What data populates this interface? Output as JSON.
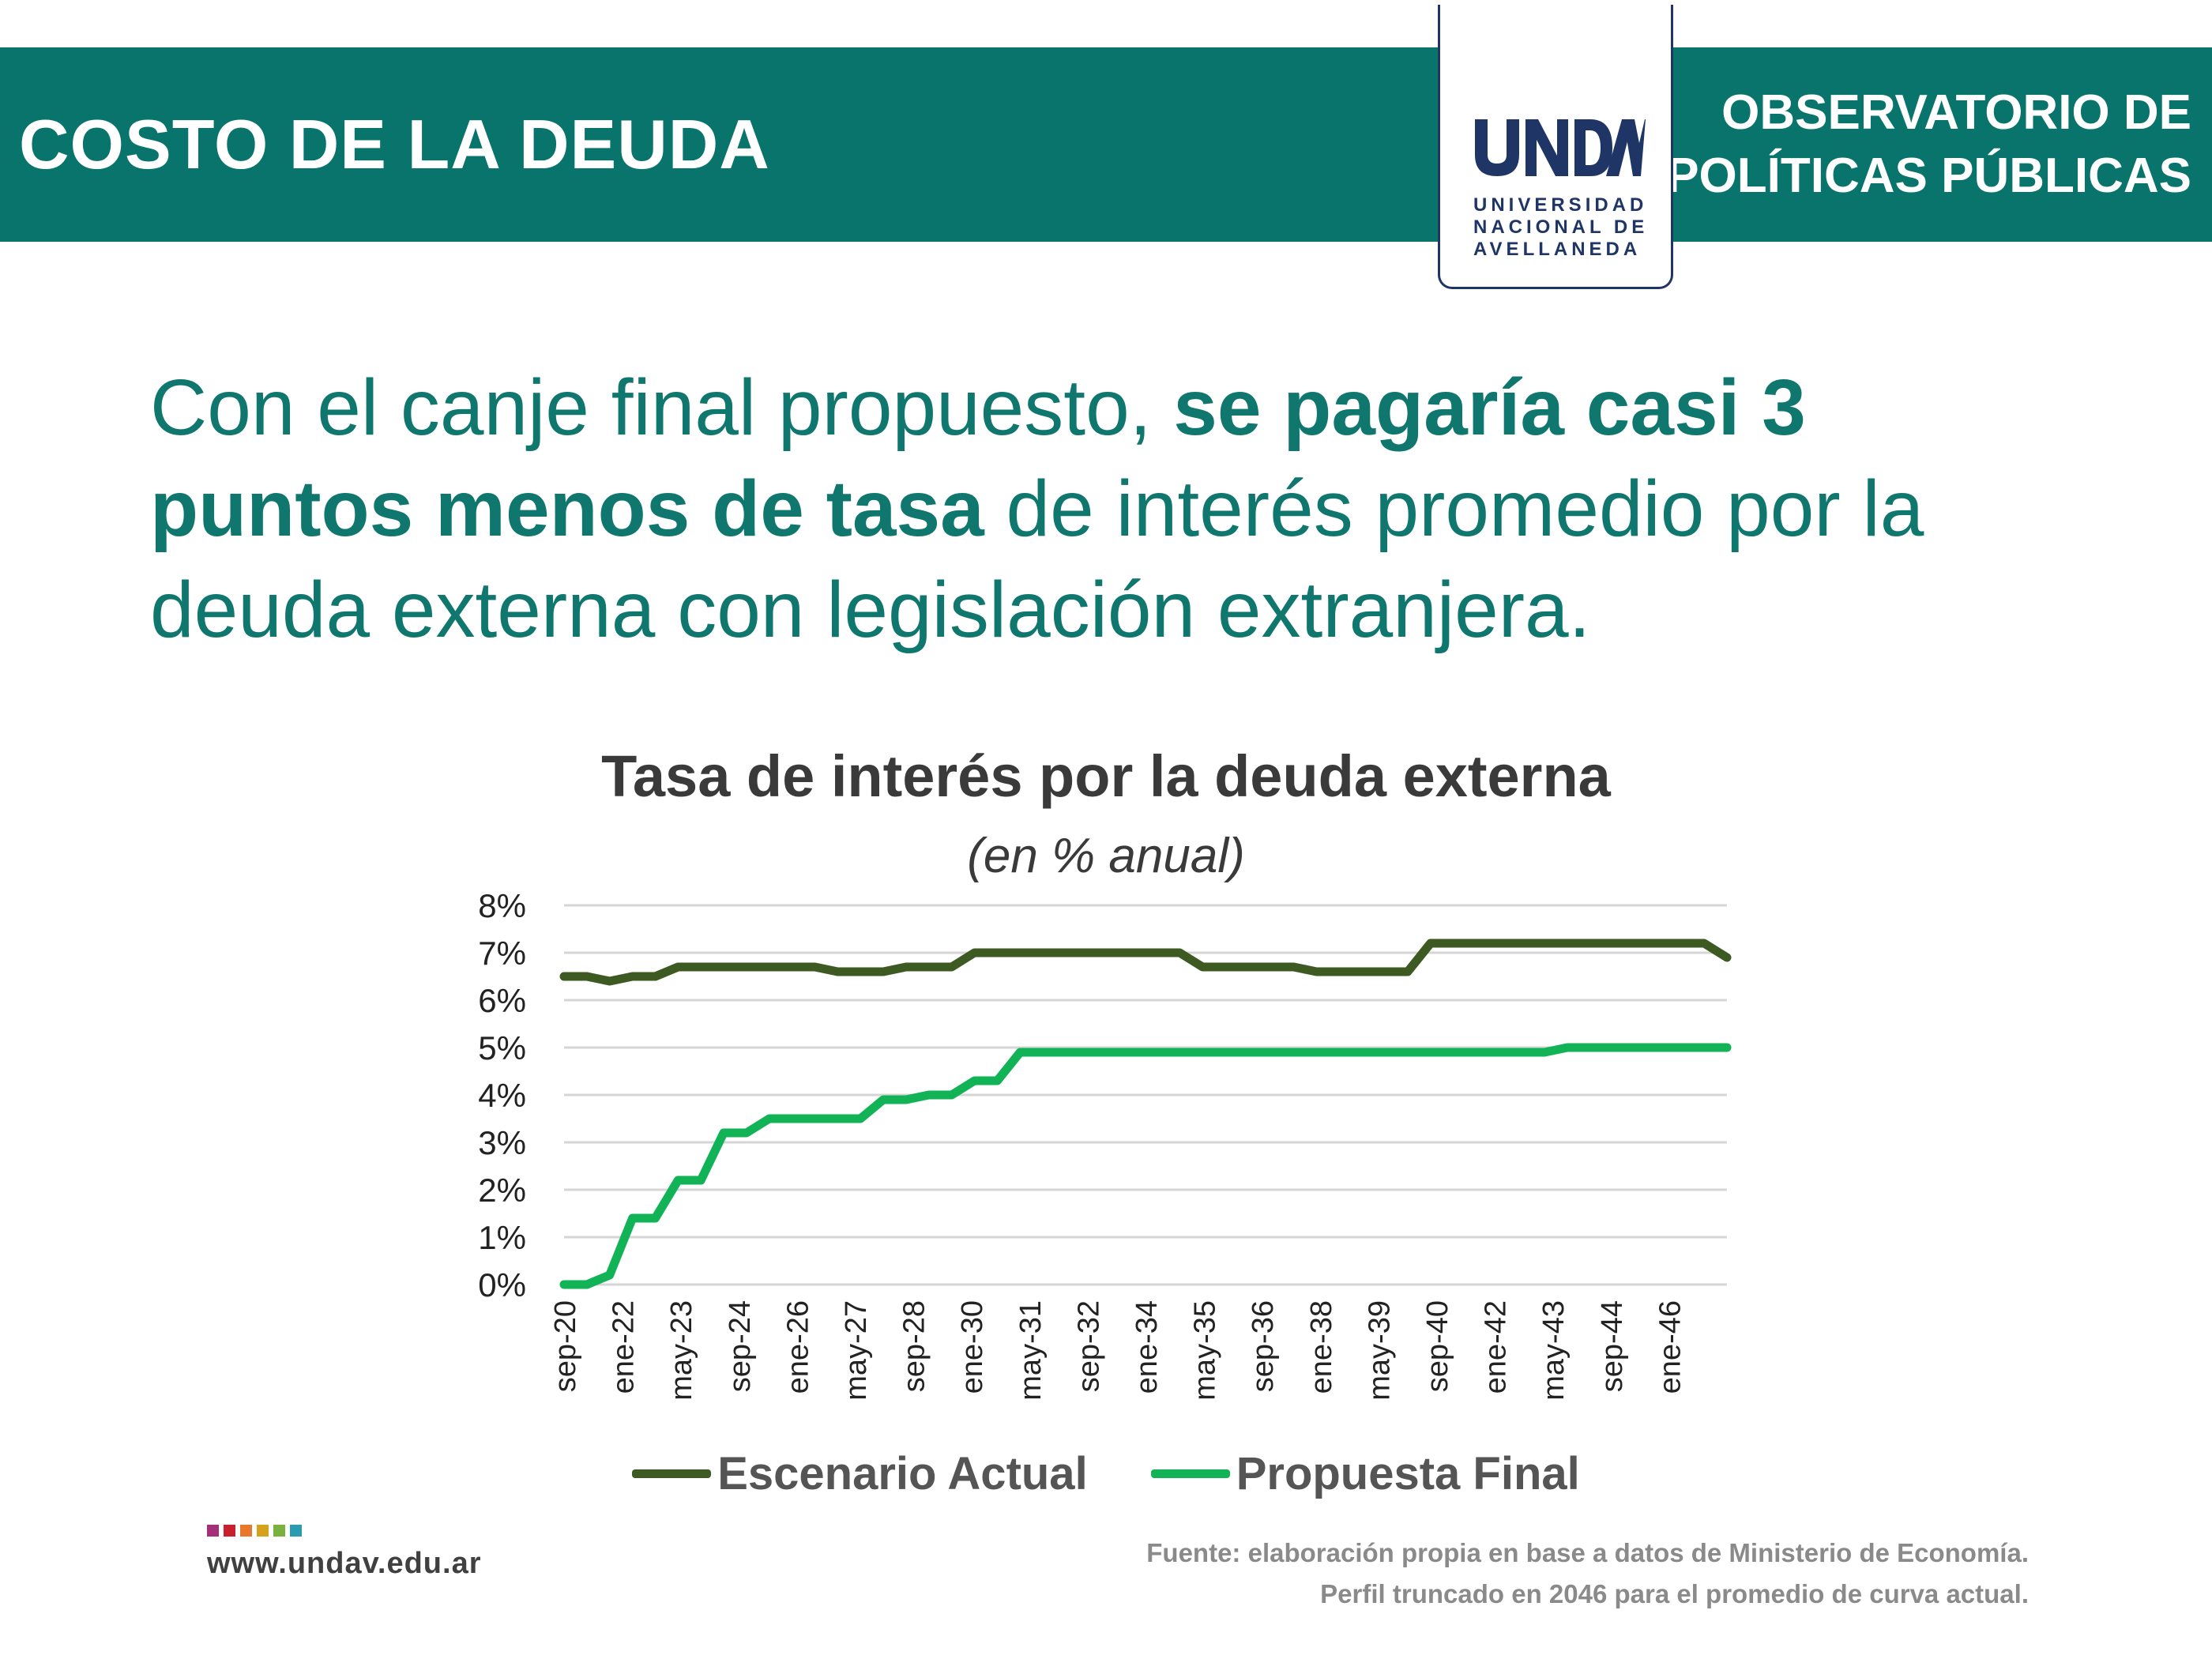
{
  "header": {
    "section_title": "COSTO DE LA DEUDA",
    "observatory_line1": "OBSERVATORIO DE",
    "observatory_line2": "POLÍTICAS PÚBLICAS",
    "logo_text": "UNDAV",
    "logo_sub_line1": "UNIVERSIDAD",
    "logo_sub_line2": "NACIONAL DE",
    "logo_sub_line3": "AVELLANEDA",
    "banner_color": "#08746c",
    "logo_color": "#1f3566"
  },
  "headline": {
    "part1": "Con el canje final propuesto, ",
    "bold": "se pagaría casi 3 puntos menos de tasa",
    "part2": " de interés promedio por la deuda externa con legislación extranjera."
  },
  "chart_data": {
    "type": "line",
    "title": "Tasa de interés por la deuda externa",
    "subtitle": "(en % anual)",
    "ylim": [
      0,
      8
    ],
    "yticks": [
      "0%",
      "1%",
      "2%",
      "3%",
      "4%",
      "5%",
      "6%",
      "7%",
      "8%"
    ],
    "grid": true,
    "legend_position": "bottom",
    "x_labels": [
      "sep-20",
      "ene-22",
      "may-23",
      "sep-24",
      "ene-26",
      "may-27",
      "sep-28",
      "ene-30",
      "may-31",
      "sep-32",
      "ene-34",
      "may-35",
      "sep-36",
      "ene-38",
      "may-39",
      "sep-40",
      "ene-42",
      "may-43",
      "sep-44",
      "ene-46"
    ],
    "series": [
      {
        "name": "Escenario Actual",
        "color": "#3c5a22",
        "values": [
          6.5,
          6.5,
          6.4,
          6.5,
          6.5,
          6.7,
          6.7,
          6.7,
          6.7,
          6.7,
          6.7,
          6.7,
          6.6,
          6.6,
          6.6,
          6.7,
          6.7,
          6.7,
          7.0,
          7.0,
          7.0,
          7.0,
          7.0,
          7.0,
          7.0,
          7.0,
          7.0,
          7.0,
          6.7,
          6.7,
          6.7,
          6.7,
          6.7,
          6.6,
          6.6,
          6.6,
          6.6,
          6.6,
          7.2,
          7.2,
          7.2,
          7.2,
          7.2,
          7.2,
          7.2,
          7.2,
          7.2,
          7.2,
          7.2,
          7.2,
          7.2,
          6.9
        ]
      },
      {
        "name": "Propuesta Final",
        "color": "#12b356",
        "values": [
          0.0,
          0.0,
          0.2,
          1.4,
          1.4,
          2.2,
          2.2,
          3.2,
          3.2,
          3.5,
          3.5,
          3.5,
          3.5,
          3.5,
          3.9,
          3.9,
          4.0,
          4.0,
          4.3,
          4.3,
          4.9,
          4.9,
          4.9,
          4.9,
          4.9,
          4.9,
          4.9,
          4.9,
          4.9,
          4.9,
          4.9,
          4.9,
          4.9,
          4.9,
          4.9,
          4.9,
          4.9,
          4.9,
          4.9,
          4.9,
          4.9,
          4.9,
          4.9,
          4.9,
          5.0,
          5.0,
          5.0,
          5.0,
          5.0,
          5.0,
          5.0,
          5.0
        ]
      }
    ]
  },
  "footer": {
    "website": "www.undav.edu.ar",
    "source_line1": "Fuente: elaboración propia en base a datos de Ministerio de Economía.",
    "source_line2": "Perfil truncado en 2046 para el promedio de curva actual.",
    "square_colors": [
      "#a4307a",
      "#c8202d",
      "#e8782b",
      "#d6a21e",
      "#7ab03c",
      "#2b9bb0"
    ]
  }
}
